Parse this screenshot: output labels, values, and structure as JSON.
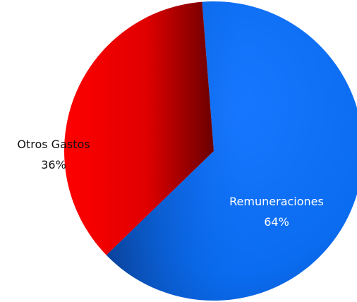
{
  "chart_data": {
    "type": "pie",
    "title": "",
    "start_angle_deg": 355.5,
    "direction": "clockwise",
    "slices": [
      {
        "label": "Remuneraciones",
        "percent_label": "64%",
        "value": 64,
        "color": "#0a6cf0",
        "label_color": "#ffffff"
      },
      {
        "label": "Otros Gastos",
        "percent_label": "36%",
        "value": 36,
        "color": "#f00000",
        "label_color": "#111111"
      }
    ]
  }
}
